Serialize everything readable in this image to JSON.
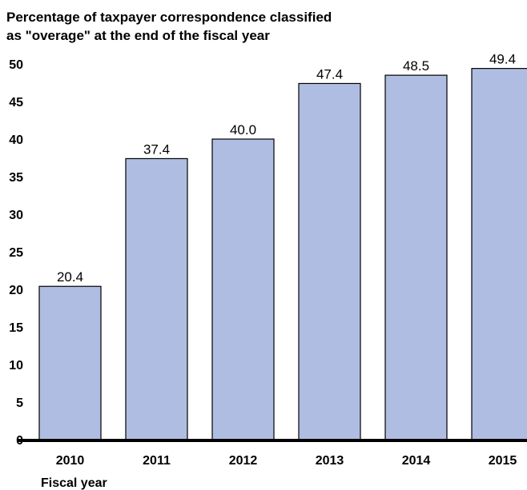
{
  "chart_data": {
    "type": "bar",
    "title": "Percentage of taxpayer correspondence classified as \"overage\" at the end of the fiscal year",
    "title_lines": [
      "Percentage of taxpayer correspondence classified",
      "as \"overage\" at the end of the fiscal year"
    ],
    "xlabel": "Fiscal year",
    "ylabel": "",
    "categories": [
      "2010",
      "2011",
      "2012",
      "2013",
      "2014",
      "2015"
    ],
    "values": [
      20.4,
      37.4,
      40.0,
      47.4,
      48.5,
      49.4
    ],
    "value_labels": [
      "20.4",
      "37.4",
      "40.0",
      "47.4",
      "48.5",
      "49.4"
    ],
    "ylim": [
      0,
      50
    ],
    "yticks": [
      "0",
      "5",
      "10",
      "15",
      "20",
      "25",
      "30",
      "35",
      "40",
      "45",
      "50"
    ],
    "grid": false,
    "legend": "none",
    "bar_color": "#b0bde3",
    "bar_edge_color": "#000000"
  }
}
